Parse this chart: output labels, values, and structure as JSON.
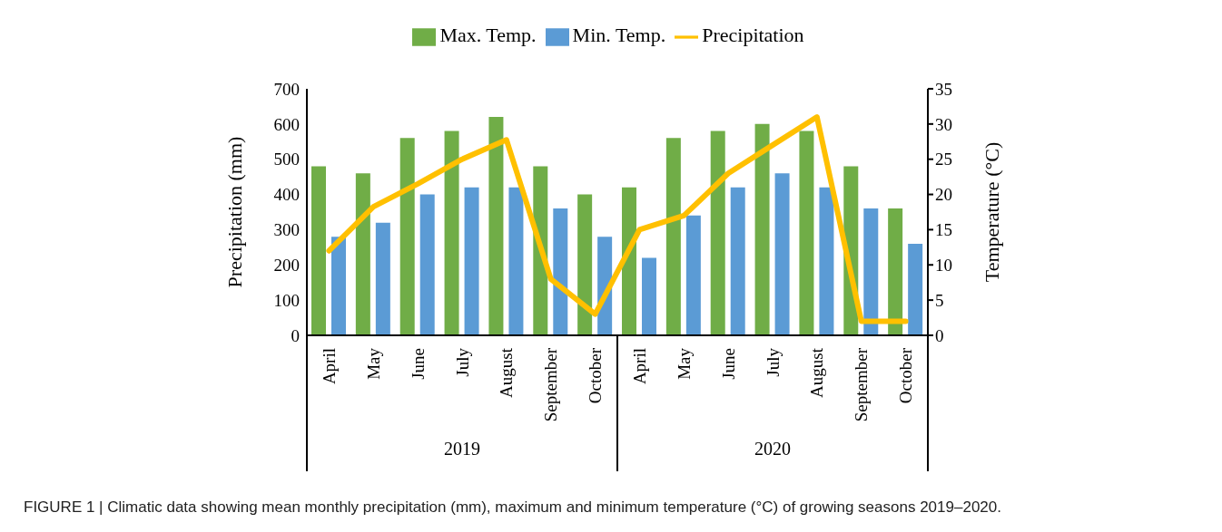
{
  "chart_data": {
    "type": "bar",
    "categories": [
      "April",
      "May",
      "June",
      "July",
      "August",
      "September",
      "October",
      "April",
      "May",
      "June",
      "July",
      "August",
      "September",
      "October"
    ],
    "series": [
      {
        "name": "Max. Temp.",
        "axis": "y2",
        "color": "#70ad47",
        "values": [
          24,
          23,
          28,
          29,
          31,
          24,
          20,
          21,
          28,
          29,
          30,
          29,
          24,
          18
        ]
      },
      {
        "name": "Min. Temp.",
        "axis": "y2",
        "color": "#5b9bd5",
        "values": [
          14,
          16,
          20,
          21,
          21,
          18,
          14,
          11,
          17,
          21,
          23,
          21,
          18,
          13
        ]
      },
      {
        "name": "Precipitation",
        "type": "line",
        "color": "#ffc000",
        "values": [
          240,
          365,
          430,
          500,
          555,
          160,
          60,
          300,
          340,
          460,
          540,
          620,
          40,
          40
        ]
      }
    ],
    "ylabel": "Precipitation (mm)",
    "y2label": "Temperature (°C)",
    "ylim": [
      0,
      700
    ],
    "yticks": [
      0,
      100,
      200,
      300,
      400,
      500,
      600,
      700
    ],
    "y2lim": [
      0,
      35
    ],
    "y2ticks": [
      0,
      5,
      10,
      15,
      20,
      25,
      30,
      35
    ],
    "grid": false,
    "legend": "top",
    "marker": "none",
    "line_style": "solid",
    "annotations": [
      "2019",
      "2020",
      "FIGURE 1 | Climatic data showing mean monthly precipitation (mm), maximum and minimum temperature (°C) of growing seasons 2019–2020."
    ]
  }
}
